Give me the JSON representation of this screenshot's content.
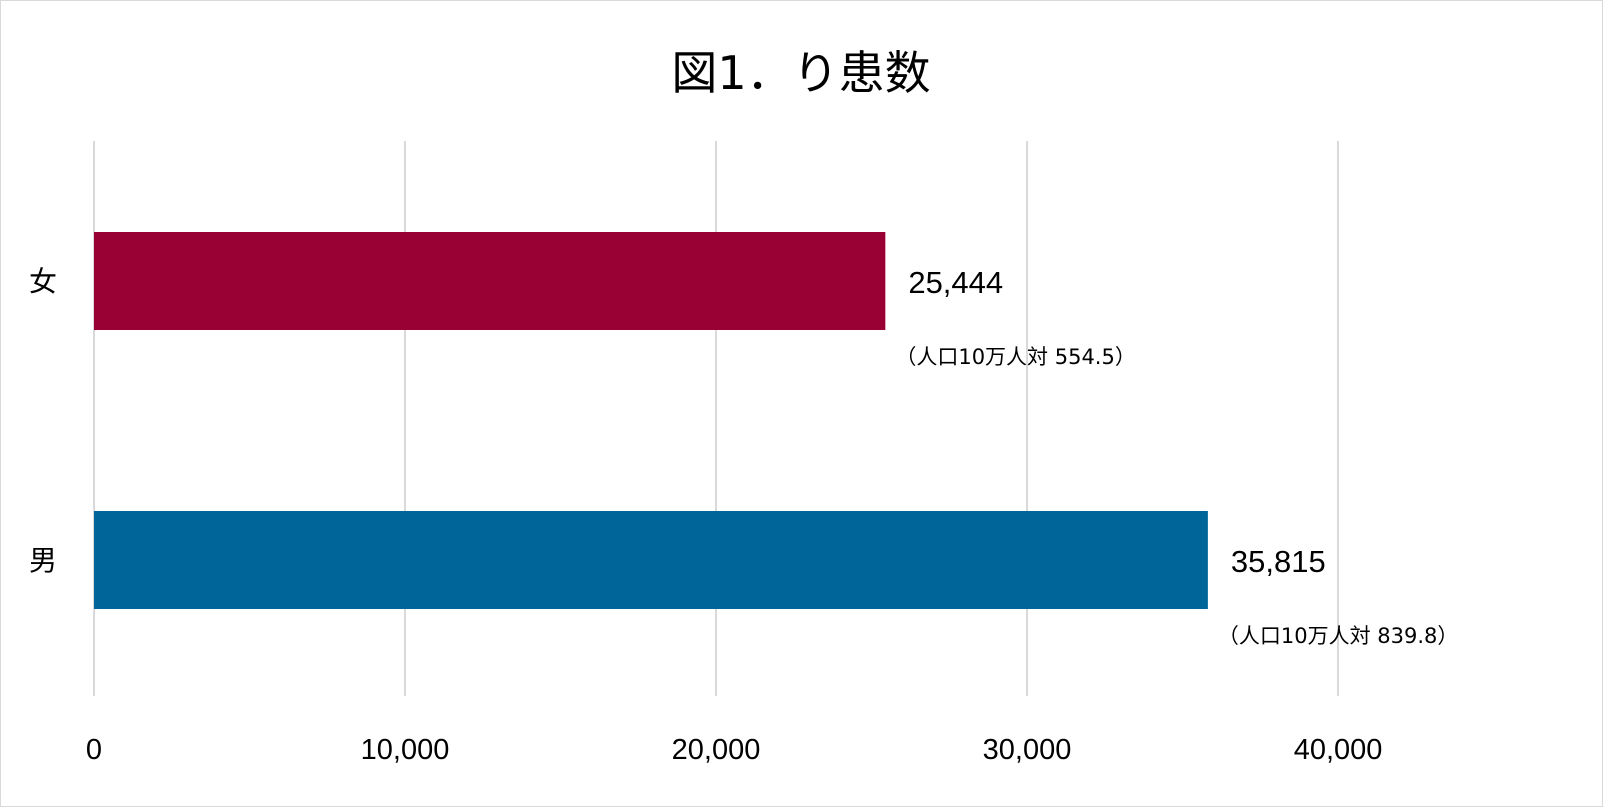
{
  "chart_data": {
    "type": "bar",
    "orientation": "horizontal",
    "title": "図1．り患数",
    "xlabel": "",
    "ylabel": "",
    "xlim": [
      0,
      47000
    ],
    "x_ticks": [
      0,
      10000,
      20000,
      30000,
      40000
    ],
    "x_tick_labels": [
      "0",
      "10,000",
      "20,000",
      "30,000",
      "40,000"
    ],
    "grid": "vertical",
    "legend": "none",
    "categories": [
      "女",
      "男"
    ],
    "values": [
      25444,
      35815
    ],
    "value_labels": [
      "25,444",
      "35,815"
    ],
    "rate_labels": [
      "（人口10万人対 554.5）",
      "（人口10万人対 839.8）"
    ],
    "rates_per_100k": [
      554.5,
      839.8
    ],
    "colors": [
      "#990033",
      "#006699"
    ]
  }
}
